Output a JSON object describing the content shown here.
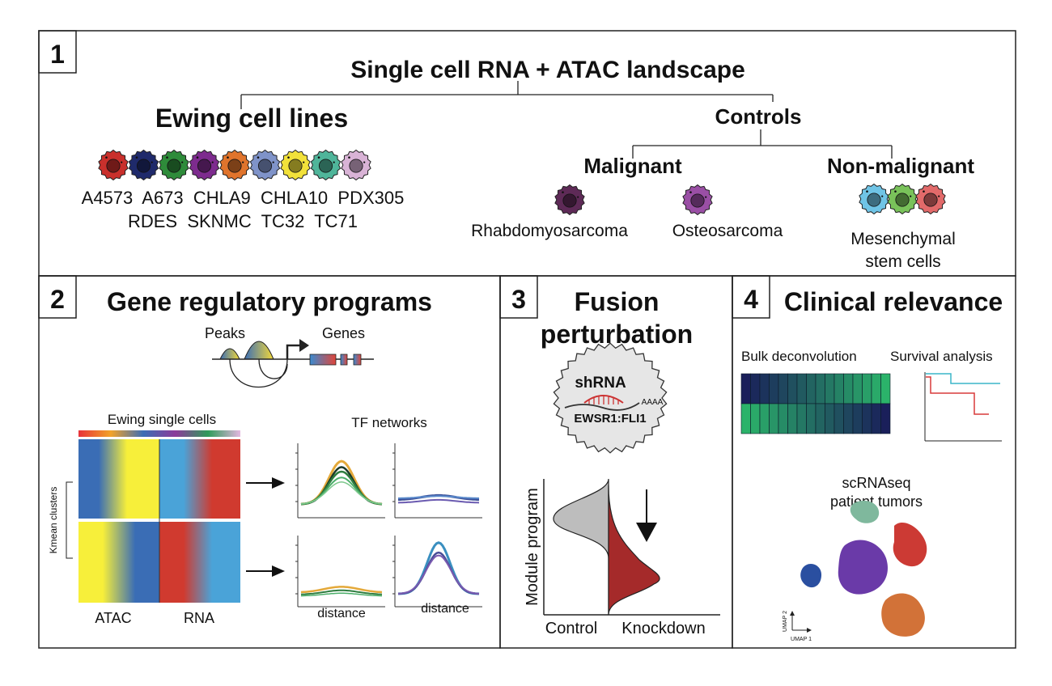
{
  "panel1": {
    "number": "1",
    "title": "Single cell RNA + ATAC landscape",
    "ewing": {
      "heading": "Ewing cell lines",
      "cell_colors": [
        "#c9302c",
        "#1f2a6b",
        "#2e8b3a",
        "#7d2b8e",
        "#e0742c",
        "#7f93c9",
        "#f2e13a",
        "#4fb59a",
        "#d9b3d6"
      ],
      "line_row1": "A4573  A673  CHLA9  CHLA10  PDX305",
      "line_row2": "RDES  SKNMC  TC32  TC71"
    },
    "controls": {
      "heading": "Controls",
      "malignant": {
        "heading": "Malignant",
        "items": [
          {
            "label": "Rhabdomyosarcoma",
            "color": "#5e2a57"
          },
          {
            "label": "Osteosarcoma",
            "color": "#9a4fa5"
          }
        ]
      },
      "non_malignant": {
        "heading": "Non-malignant",
        "colors": [
          "#6fc4e6",
          "#79c25a",
          "#e26a6a"
        ],
        "label_line1": "Mesenchymal",
        "label_line2": "stem cells"
      }
    }
  },
  "panel2": {
    "number": "2",
    "title": "Gene regulatory programs",
    "peaks_label": "Peaks",
    "genes_label": "Genes",
    "single_cells_label": "Ewing single cells",
    "kmean_label": "Kmean clusters",
    "atac_label": "ATAC",
    "rna_label": "RNA",
    "tf_networks_label": "TF networks",
    "distance_label": "distance"
  },
  "panel3": {
    "number": "3",
    "title_line1": "Fusion",
    "title_line2": "perturbation",
    "shrna_label": "shRNA",
    "polya_label": "AAAA",
    "fusion_label": "EWSR1:FLI1",
    "ylabel": "Module program",
    "control_label": "Control",
    "knockdown_label": "Knockdown",
    "knockdown_color": "#a52a2a"
  },
  "panel4": {
    "number": "4",
    "title": "Clinical relevance",
    "bulk_label": "Bulk deconvolution",
    "survival_label": "Survival analysis",
    "scrna_line1": "scRNAseq",
    "scrna_line2": "patient tumors",
    "umap1": "UMAP 1",
    "umap2": "UMAP 2"
  }
}
